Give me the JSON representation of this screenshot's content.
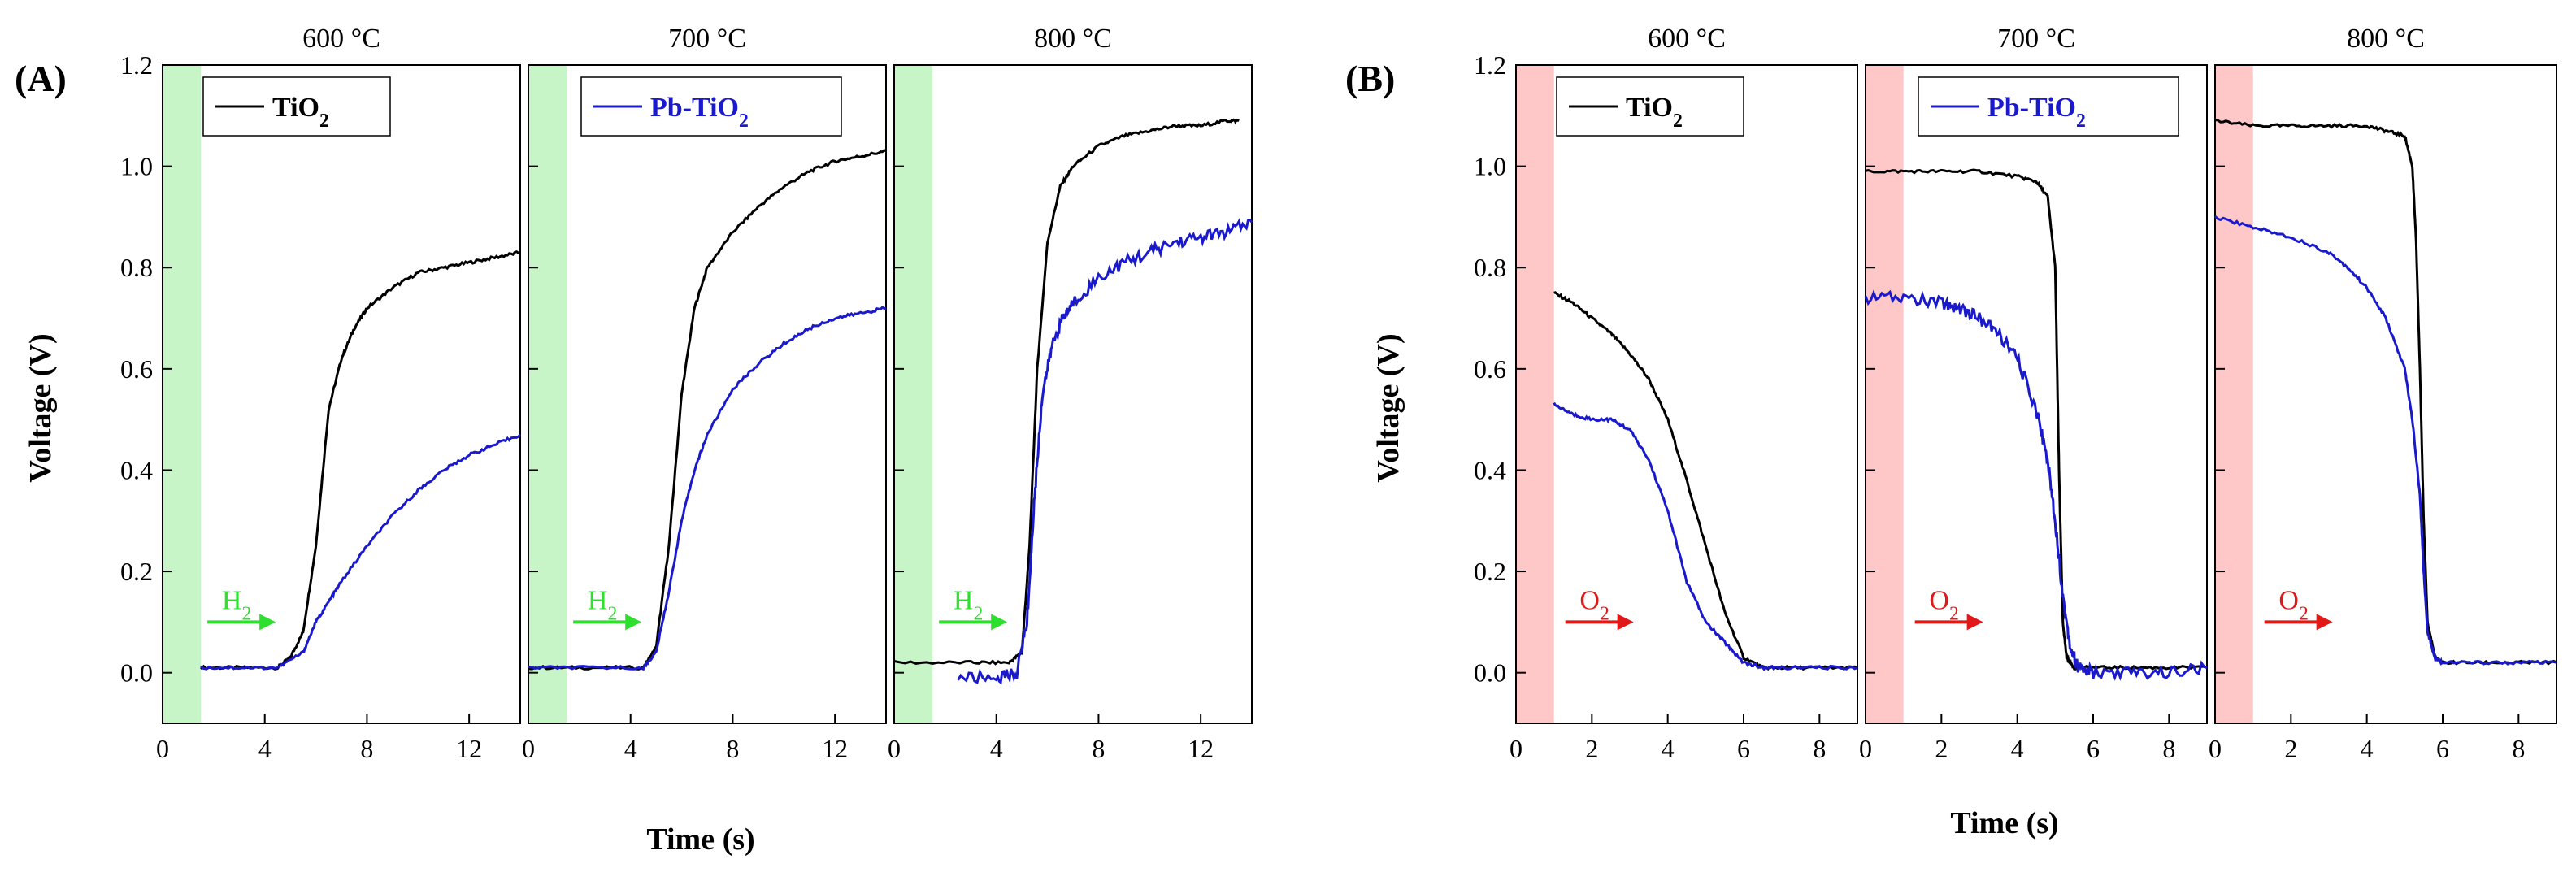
{
  "figure": {
    "group_A_label": "(A)",
    "group_B_label": "(B)",
    "ylabel": "Voltage (V)",
    "xlabel": "Time (s)"
  },
  "colors": {
    "tio2": "#000000",
    "pb_tio2": "#1a1acc",
    "h2_band": "#c8f5c8",
    "h2_arrow": "#2ee02e",
    "o2_band": "#ffc8c8",
    "o2_arrow": "#e01818"
  },
  "chart_data": [
    {
      "type": "line",
      "group": "A",
      "title": "600 °C",
      "xlim": [
        0,
        14
      ],
      "ylim": [
        -0.1,
        1.2
      ],
      "xticks": [
        "0",
        "4",
        "8",
        "12"
      ],
      "yticks": [
        "0.0",
        "0.2",
        "0.4",
        "0.6",
        "0.8",
        "1.0",
        "1.2"
      ],
      "gas_band": [
        0,
        1.5
      ],
      "gas_label": "H2",
      "legend_label": "TiO2",
      "series": [
        {
          "name": "TiO2",
          "color_key": "tio2",
          "x": [
            1.5,
            3,
            4.5,
            5.0,
            5.5,
            6.0,
            6.5,
            7.0,
            7.5,
            8.0,
            9.0,
            10.0,
            11.0,
            12.0,
            13.0,
            14.0
          ],
          "y": [
            0.01,
            0.01,
            0.01,
            0.03,
            0.08,
            0.25,
            0.52,
            0.62,
            0.68,
            0.72,
            0.76,
            0.79,
            0.8,
            0.81,
            0.82,
            0.83
          ]
        },
        {
          "name": "Pb-TiO2",
          "color_key": "pb_tio2",
          "x": [
            1.5,
            3,
            4.5,
            5.5,
            6.0,
            6.5,
            7.0,
            8.0,
            9.0,
            10.0,
            11.0,
            12.0,
            13.0,
            14.0
          ],
          "y": [
            0.01,
            0.01,
            0.01,
            0.04,
            0.1,
            0.14,
            0.18,
            0.25,
            0.31,
            0.36,
            0.4,
            0.43,
            0.45,
            0.47
          ]
        }
      ]
    },
    {
      "type": "line",
      "group": "A",
      "title": "700 °C",
      "xlim": [
        0,
        14
      ],
      "ylim": [
        -0.1,
        1.2
      ],
      "xticks": [
        "0",
        "4",
        "8",
        "12"
      ],
      "gas_band": [
        0,
        1.5
      ],
      "gas_label": "H2",
      "legend_label": "Pb-TiO2",
      "series": [
        {
          "name": "TiO2",
          "color_key": "tio2",
          "x": [
            0,
            2,
            4.5,
            5.0,
            5.5,
            6.0,
            6.5,
            7.0,
            8.0,
            9.0,
            10.0,
            11.0,
            12.0,
            13.0,
            14.0
          ],
          "y": [
            0.01,
            0.01,
            0.01,
            0.05,
            0.25,
            0.55,
            0.72,
            0.8,
            0.87,
            0.92,
            0.96,
            0.99,
            1.01,
            1.02,
            1.03
          ]
        },
        {
          "name": "Pb-TiO2",
          "color_key": "pb_tio2",
          "x": [
            0,
            2,
            4.5,
            5.0,
            5.5,
            6.0,
            6.5,
            7.0,
            8.0,
            9.0,
            10.0,
            11.0,
            12.0,
            13.0,
            14.0
          ],
          "y": [
            0.01,
            0.01,
            0.01,
            0.04,
            0.16,
            0.3,
            0.4,
            0.47,
            0.56,
            0.61,
            0.65,
            0.68,
            0.7,
            0.71,
            0.72
          ]
        }
      ]
    },
    {
      "type": "line",
      "group": "A",
      "title": "800 °C",
      "xlim": [
        0,
        14
      ],
      "ylim": [
        -0.1,
        1.2
      ],
      "xticks": [
        "0",
        "4",
        "8",
        "12"
      ],
      "gas_band": [
        0,
        1.5
      ],
      "gas_label": "H2",
      "series": [
        {
          "name": "TiO2",
          "color_key": "tio2",
          "x": [
            0,
            3,
            4.5,
            5.0,
            5.3,
            5.6,
            6.0,
            6.5,
            7.0,
            8.0,
            9.0,
            10.0,
            11.0,
            12.0,
            13.0,
            13.5
          ],
          "y": [
            0.02,
            0.02,
            0.02,
            0.04,
            0.25,
            0.6,
            0.85,
            0.96,
            1.0,
            1.04,
            1.06,
            1.07,
            1.08,
            1.08,
            1.09,
            1.09
          ]
        },
        {
          "name": "Pb-TiO2",
          "color_key": "pb_tio2",
          "x": [
            2.5,
            4.0,
            4.8,
            5.2,
            5.5,
            5.8,
            6.2,
            6.6,
            7.0,
            8.0,
            9.0,
            10.0,
            11.0,
            12.0,
            13.0,
            14.0
          ],
          "y": [
            -0.01,
            -0.01,
            0.0,
            0.1,
            0.35,
            0.55,
            0.65,
            0.7,
            0.73,
            0.78,
            0.81,
            0.83,
            0.85,
            0.86,
            0.87,
            0.89
          ]
        }
      ]
    },
    {
      "type": "line",
      "group": "B",
      "title": "600 °C",
      "xlim": [
        0,
        9
      ],
      "ylim": [
        -0.1,
        1.2
      ],
      "xticks": [
        "0",
        "2",
        "4",
        "6",
        "8"
      ],
      "yticks": [
        "0.0",
        "0.2",
        "0.4",
        "0.6",
        "0.8",
        "1.0",
        "1.2"
      ],
      "gas_band": [
        0,
        1.0
      ],
      "gas_label": "O2",
      "legend_label": "TiO2",
      "series": [
        {
          "name": "TiO2",
          "color_key": "tio2",
          "x": [
            1.0,
            1.5,
            2.0,
            2.5,
            3.0,
            3.5,
            4.0,
            4.5,
            5.0,
            5.5,
            6.0,
            6.5,
            7.0,
            8.0,
            9.0
          ],
          "y": [
            0.75,
            0.73,
            0.7,
            0.67,
            0.63,
            0.58,
            0.5,
            0.38,
            0.25,
            0.12,
            0.03,
            0.01,
            0.01,
            0.01,
            0.01
          ]
        },
        {
          "name": "Pb-TiO2",
          "color_key": "pb_tio2",
          "x": [
            1.0,
            1.5,
            2.0,
            2.5,
            3.0,
            3.5,
            4.0,
            4.5,
            5.0,
            5.5,
            6.0,
            6.5,
            7.0,
            8.0,
            9.0
          ],
          "y": [
            0.53,
            0.51,
            0.5,
            0.5,
            0.48,
            0.42,
            0.32,
            0.18,
            0.1,
            0.06,
            0.02,
            0.01,
            0.01,
            0.01,
            0.01
          ]
        }
      ]
    },
    {
      "type": "line",
      "group": "B",
      "title": "700 °C",
      "xlim": [
        0,
        9
      ],
      "ylim": [
        -0.1,
        1.2
      ],
      "xticks": [
        "0",
        "2",
        "4",
        "6",
        "8"
      ],
      "gas_band": [
        0,
        1.0
      ],
      "gas_label": "O2",
      "legend_label": "Pb-TiO2",
      "series": [
        {
          "name": "TiO2",
          "color_key": "tio2",
          "x": [
            0,
            1,
            2,
            3,
            4,
            4.5,
            4.8,
            5.0,
            5.1,
            5.2,
            5.3,
            5.5,
            6.0,
            7.0,
            8.0,
            9.0
          ],
          "y": [
            0.99,
            0.99,
            0.99,
            0.99,
            0.98,
            0.97,
            0.94,
            0.8,
            0.4,
            0.1,
            0.03,
            0.01,
            0.01,
            0.01,
            0.01,
            0.01
          ]
        },
        {
          "name": "Pb-TiO2",
          "color_key": "pb_tio2",
          "x": [
            0,
            1,
            2,
            2.5,
            3,
            3.5,
            4,
            4.5,
            4.8,
            5.0,
            5.2,
            5.4,
            5.6,
            6.0,
            7.0,
            8.0,
            9.0
          ],
          "y": [
            0.74,
            0.74,
            0.73,
            0.72,
            0.7,
            0.67,
            0.62,
            0.52,
            0.42,
            0.3,
            0.15,
            0.05,
            0.01,
            0.0,
            0.0,
            0.0,
            0.01
          ]
        }
      ]
    },
    {
      "type": "line",
      "group": "B",
      "title": "800 °C",
      "xlim": [
        0,
        9
      ],
      "ylim": [
        -0.1,
        1.2
      ],
      "xticks": [
        "0",
        "2",
        "4",
        "6",
        "8"
      ],
      "gas_band": [
        0,
        1.0
      ],
      "gas_label": "O2",
      "series": [
        {
          "name": "TiO2",
          "color_key": "tio2",
          "x": [
            0,
            1,
            2,
            3,
            4,
            4.5,
            5.0,
            5.2,
            5.3,
            5.4,
            5.5,
            5.6,
            5.8,
            6.0,
            7.0,
            8.0,
            9.0
          ],
          "y": [
            1.09,
            1.08,
            1.08,
            1.08,
            1.08,
            1.07,
            1.06,
            1.0,
            0.85,
            0.6,
            0.3,
            0.1,
            0.03,
            0.02,
            0.02,
            0.02,
            0.02
          ]
        },
        {
          "name": "Pb-TiO2",
          "color_key": "pb_tio2",
          "x": [
            0,
            1,
            2,
            3,
            3.5,
            4,
            4.5,
            5.0,
            5.2,
            5.4,
            5.5,
            5.6,
            5.8,
            6.0,
            7.0,
            8.0,
            9.0
          ],
          "y": [
            0.9,
            0.88,
            0.86,
            0.83,
            0.8,
            0.76,
            0.7,
            0.6,
            0.5,
            0.35,
            0.2,
            0.08,
            0.03,
            0.02,
            0.02,
            0.02,
            0.02
          ]
        }
      ]
    }
  ]
}
